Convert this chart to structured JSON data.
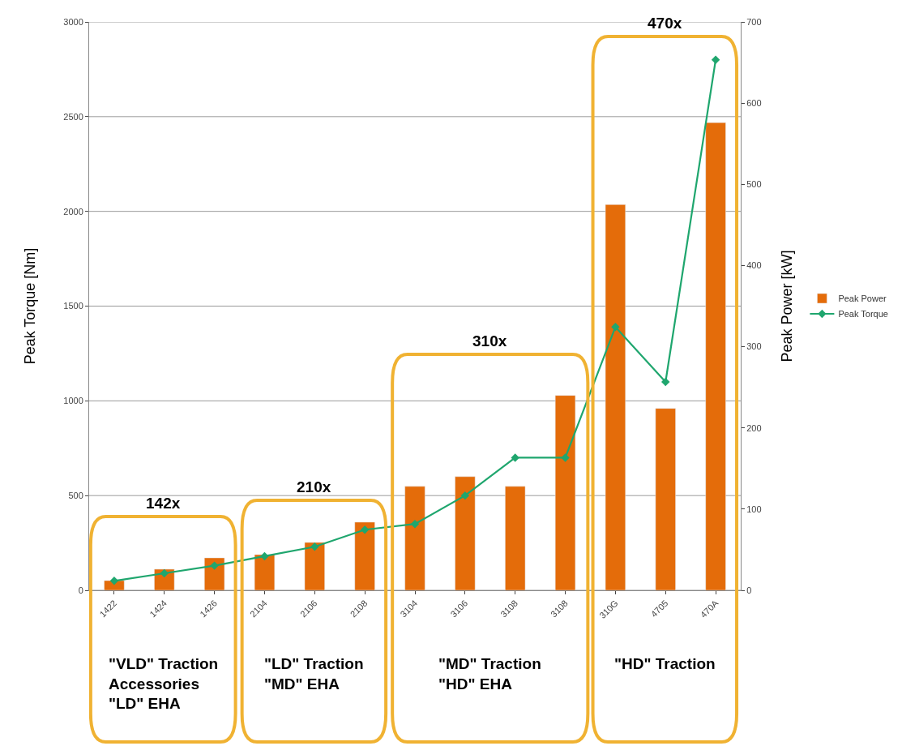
{
  "chart_data": {
    "type": "bar",
    "categories": [
      "1422",
      "1424",
      "1426",
      "2104",
      "2106",
      "2108",
      "3104",
      "3106",
      "3108",
      "3108",
      "310G",
      "4705",
      "470A"
    ],
    "series": [
      {
        "name": "Peak Power",
        "type": "bar",
        "axis": "y2",
        "color": "#e46c0a",
        "values": [
          12,
          26,
          40,
          44,
          59,
          84,
          128,
          140,
          128,
          240,
          475,
          224,
          576
        ]
      },
      {
        "name": "Peak Torque",
        "type": "line",
        "axis": "y",
        "color": "#1fa66e",
        "marker": "diamond",
        "values": [
          50,
          90,
          130,
          180,
          230,
          320,
          350,
          500,
          700,
          700,
          1390,
          1100,
          2800
        ]
      }
    ],
    "ylabel": "Peak Torque [Nm]",
    "y2label": "Peak Power [kW]",
    "ylim": [
      0,
      3000
    ],
    "yticks": [
      0,
      500,
      1000,
      1500,
      2000,
      2500,
      3000
    ],
    "y2lim": [
      0,
      700
    ],
    "y2ticks": [
      0,
      100,
      200,
      300,
      400,
      500,
      600,
      700
    ],
    "grid": "y",
    "legend": "right",
    "annotations": [
      "142x",
      "210x",
      "310x",
      "470x",
      "\"VLD\" Traction\nAccessories\n\"LD\" EHA",
      "\"LD\" Traction\n\"MD\" EHA",
      "\"MD\" Traction\n\"HD\" EHA",
      "\"HD\" Traction"
    ]
  }
}
